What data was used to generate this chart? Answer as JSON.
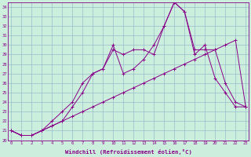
{
  "xlabel": "Windchill (Refroidissement éolien,°C)",
  "background_color": "#cceedd",
  "grid_color": "#99bbcc",
  "line_color": "#880088",
  "x_values": [
    0,
    1,
    2,
    3,
    4,
    5,
    6,
    7,
    8,
    9,
    10,
    11,
    12,
    13,
    14,
    15,
    16,
    17,
    18,
    19,
    20,
    21,
    22,
    23
  ],
  "series1_y": [
    21,
    20.5,
    20.5,
    21.0,
    21.5,
    22.0,
    22.5,
    23.0,
    23.5,
    24.0,
    24.5,
    25.0,
    25.5,
    26.0,
    26.5,
    27.0,
    27.5,
    28.0,
    28.5,
    29.0,
    29.5,
    30.0,
    30.5,
    23.5
  ],
  "series2_y": [
    21,
    20.5,
    20.5,
    21.0,
    22.0,
    23.0,
    24.0,
    26.0,
    27.0,
    27.5,
    29.5,
    29.0,
    29.5,
    29.5,
    29.0,
    32.0,
    34.5,
    33.5,
    29.5,
    29.5,
    29.5,
    26.0,
    24.0,
    23.5
  ],
  "series3_y": [
    21,
    20.5,
    20.5,
    21.0,
    21.5,
    22.0,
    23.5,
    25.0,
    27.0,
    27.5,
    30.0,
    27.0,
    27.5,
    28.5,
    30.0,
    32.0,
    34.5,
    33.5,
    29.0,
    30.0,
    26.5,
    25.0,
    23.5,
    23.5
  ],
  "xlim": [
    0,
    23
  ],
  "ylim": [
    20,
    34.5
  ],
  "ytick_vals": [
    20,
    21,
    22,
    23,
    24,
    25,
    26,
    27,
    28,
    29,
    30,
    31,
    32,
    33,
    34
  ],
  "xtick_vals": [
    0,
    1,
    2,
    3,
    4,
    5,
    6,
    7,
    8,
    9,
    10,
    11,
    12,
    13,
    14,
    15,
    16,
    17,
    18,
    19,
    20,
    21,
    22,
    23
  ]
}
